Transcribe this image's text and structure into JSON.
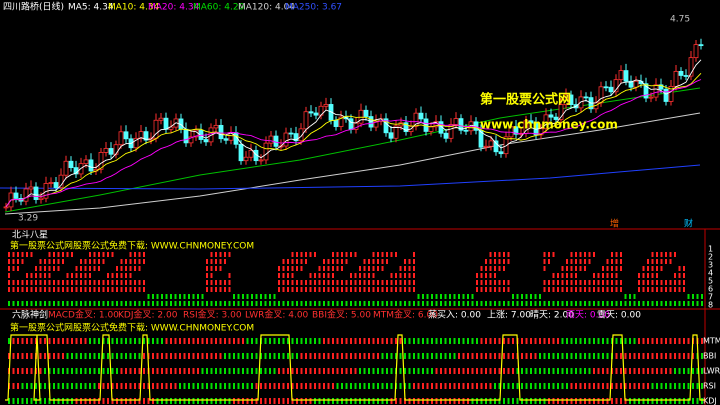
{
  "header": {
    "title": "四川路桥(日线)",
    "indicators": [
      {
        "label": "MA5: 4.34",
        "color": "#ffffff"
      },
      {
        "label": "MA10: 4.34",
        "color": "#ffff00"
      },
      {
        "label": "MA20: 4.34",
        "color": "#ff00ff"
      },
      {
        "label": "MA60: 4.20",
        "color": "#00e000"
      },
      {
        "label": "MA120: 4.04",
        "color": "#d0d0d0"
      },
      {
        "label": "MA250: 3.67",
        "color": "#3050ff"
      }
    ]
  },
  "main": {
    "price_high": "4.75",
    "price_low": "3.29",
    "events": [
      "增",
      "财"
    ]
  },
  "watermark": {
    "title": "第一股票公式网",
    "url": "www.chnmoney.com"
  },
  "panel1": {
    "title": "北斗八星",
    "banner": "第一股票公式网股票公式免费下载: WWW.CHNMONEY.COM",
    "rows": [
      "1",
      "2",
      "3",
      "4",
      "5",
      "6",
      "7",
      "8"
    ]
  },
  "panel2": {
    "title": "六脉神剑",
    "banner": "第一股票公式网股票公式免费下载: WWW.CHNMONEY.COM",
    "indicators": [
      {
        "label": "MACD金叉: 1.00",
        "color": "#ff3030"
      },
      {
        "label": "KDJ金叉: 2.00",
        "color": "#ff3030"
      },
      {
        "label": "RSI金叉: 3.00",
        "color": "#ff3030"
      },
      {
        "label": "LWR金叉: 4.00",
        "color": "#ff3030"
      },
      {
        "label": "BBI金叉: 5.00",
        "color": "#ff3030"
      },
      {
        "label": "MTM金叉: 6.00",
        "color": "#ff3030"
      },
      {
        "label": "蒸买入: 0.00",
        "color": "#ffffff"
      },
      {
        "label": "上涨: 7.00",
        "color": "#ffffff"
      },
      {
        "label": "晴天: 2.00",
        "color": "#ffffff"
      },
      {
        "label": "雨天: 0.00",
        "color": "#ff00ff"
      },
      {
        "label": "雪天: 0.00",
        "color": "#ffffff"
      }
    ],
    "rows": [
      "MTM",
      "BBI",
      "LWR",
      "RSI",
      "KDJ"
    ]
  }
}
